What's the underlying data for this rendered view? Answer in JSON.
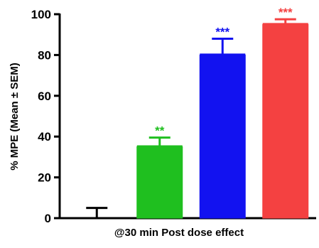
{
  "chart_data": {
    "type": "bar",
    "title": "",
    "xlabel": "@30 min Post dose effect",
    "ylabel": "% MPE (Mean ± SEM)",
    "ylim": [
      0,
      100
    ],
    "yticks": [
      0,
      20,
      40,
      60,
      80,
      100
    ],
    "grid": false,
    "series": [
      {
        "value": 0,
        "error": 5,
        "significance": "",
        "color": "#000000"
      },
      {
        "value": 35,
        "error": 4.5,
        "significance": "**",
        "color": "#1fbf1f"
      },
      {
        "value": 80,
        "error": 8,
        "significance": "***",
        "color": "#1212f0"
      },
      {
        "value": 95,
        "error": 2.5,
        "significance": "***",
        "color": "#f44141"
      }
    ]
  }
}
